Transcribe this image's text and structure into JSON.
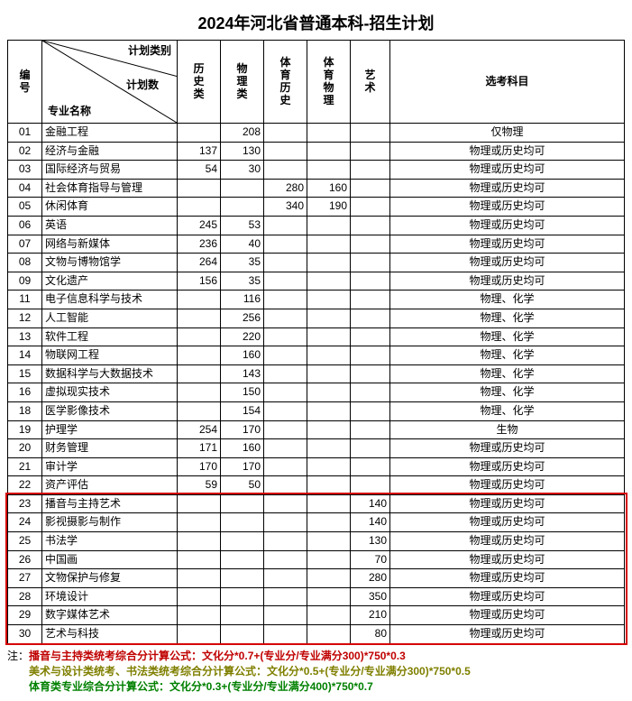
{
  "title": "2024年河北省普通本科-招生计划",
  "header": {
    "diag_top": "计划类别",
    "diag_mid": "计划数",
    "diag_bot": "专业名称",
    "id": "编号",
    "cols": [
      "历史类",
      "物理类",
      "体育历史",
      "体育物理",
      "艺术"
    ],
    "req": "选考科目"
  },
  "rows": [
    {
      "id": "01",
      "major": "金融工程",
      "v": [
        "",
        "208",
        "",
        "",
        ""
      ],
      "req": "仅物理"
    },
    {
      "id": "02",
      "major": "经济与金融",
      "v": [
        "137",
        "130",
        "",
        "",
        ""
      ],
      "req": "物理或历史均可"
    },
    {
      "id": "03",
      "major": "国际经济与贸易",
      "v": [
        "54",
        "30",
        "",
        "",
        ""
      ],
      "req": "物理或历史均可"
    },
    {
      "id": "04",
      "major": "社会体育指导与管理",
      "v": [
        "",
        "",
        "280",
        "160",
        ""
      ],
      "req": "物理或历史均可"
    },
    {
      "id": "05",
      "major": "休闲体育",
      "v": [
        "",
        "",
        "340",
        "190",
        ""
      ],
      "req": "物理或历史均可"
    },
    {
      "id": "06",
      "major": "英语",
      "v": [
        "245",
        "53",
        "",
        "",
        ""
      ],
      "req": "物理或历史均可"
    },
    {
      "id": "07",
      "major": "网络与新媒体",
      "v": [
        "236",
        "40",
        "",
        "",
        ""
      ],
      "req": "物理或历史均可"
    },
    {
      "id": "08",
      "major": "文物与博物馆学",
      "v": [
        "264",
        "35",
        "",
        "",
        ""
      ],
      "req": "物理或历史均可"
    },
    {
      "id": "09",
      "major": "文化遗产",
      "v": [
        "156",
        "35",
        "",
        "",
        ""
      ],
      "req": "物理或历史均可"
    },
    {
      "id": "11",
      "major": "电子信息科学与技术",
      "v": [
        "",
        "116",
        "",
        "",
        ""
      ],
      "req": "物理、化学"
    },
    {
      "id": "12",
      "major": "人工智能",
      "v": [
        "",
        "256",
        "",
        "",
        ""
      ],
      "req": "物理、化学"
    },
    {
      "id": "13",
      "major": "软件工程",
      "v": [
        "",
        "220",
        "",
        "",
        ""
      ],
      "req": "物理、化学"
    },
    {
      "id": "14",
      "major": "物联网工程",
      "v": [
        "",
        "160",
        "",
        "",
        ""
      ],
      "req": "物理、化学"
    },
    {
      "id": "15",
      "major": "数据科学与大数据技术",
      "v": [
        "",
        "143",
        "",
        "",
        ""
      ],
      "req": "物理、化学"
    },
    {
      "id": "16",
      "major": "虚拟现实技术",
      "v": [
        "",
        "150",
        "",
        "",
        ""
      ],
      "req": "物理、化学"
    },
    {
      "id": "18",
      "major": "医学影像技术",
      "v": [
        "",
        "154",
        "",
        "",
        ""
      ],
      "req": "物理、化学"
    },
    {
      "id": "19",
      "major": "护理学",
      "v": [
        "254",
        "170",
        "",
        "",
        ""
      ],
      "req": "生物"
    },
    {
      "id": "20",
      "major": "财务管理",
      "v": [
        "171",
        "160",
        "",
        "",
        ""
      ],
      "req": "物理或历史均可"
    },
    {
      "id": "21",
      "major": "审计学",
      "v": [
        "170",
        "170",
        "",
        "",
        ""
      ],
      "req": "物理或历史均可"
    },
    {
      "id": "22",
      "major": "资产评估",
      "v": [
        "59",
        "50",
        "",
        "",
        ""
      ],
      "req": "物理或历史均可"
    },
    {
      "id": "23",
      "major": "播音与主持艺术",
      "v": [
        "",
        "",
        "",
        "",
        "140"
      ],
      "req": "物理或历史均可"
    },
    {
      "id": "24",
      "major": "影视摄影与制作",
      "v": [
        "",
        "",
        "",
        "",
        "140"
      ],
      "req": "物理或历史均可"
    },
    {
      "id": "25",
      "major": "书法学",
      "v": [
        "",
        "",
        "",
        "",
        "130"
      ],
      "req": "物理或历史均可"
    },
    {
      "id": "26",
      "major": "中国画",
      "v": [
        "",
        "",
        "",
        "",
        "70"
      ],
      "req": "物理或历史均可"
    },
    {
      "id": "27",
      "major": "文物保护与修复",
      "v": [
        "",
        "",
        "",
        "",
        "280"
      ],
      "req": "物理或历史均可"
    },
    {
      "id": "28",
      "major": "环境设计",
      "v": [
        "",
        "",
        "",
        "",
        "350"
      ],
      "req": "物理或历史均可"
    },
    {
      "id": "29",
      "major": "数字媒体艺术",
      "v": [
        "",
        "",
        "",
        "",
        "210"
      ],
      "req": "物理或历史均可"
    },
    {
      "id": "30",
      "major": "艺术与科技",
      "v": [
        "",
        "",
        "",
        "",
        "80"
      ],
      "req": "物理或历史均可"
    }
  ],
  "notes": {
    "prefix": "注：",
    "line1": "播音与主持类统考综合分计算公式：文化分*0.7+(专业分/专业满分300)*750*0.3",
    "line2": "美术与设计类统考、书法类统考综合分计算公式：文化分*0.5+(专业分/专业满分300)*750*0.5",
    "line3": "体育类专业综合分计算公式：文化分*0.3+(专业分/专业满分400)*750*0.7"
  },
  "highlight": {
    "border_color": "#d40000",
    "start_row_id": "23",
    "end_row_id": "30"
  }
}
